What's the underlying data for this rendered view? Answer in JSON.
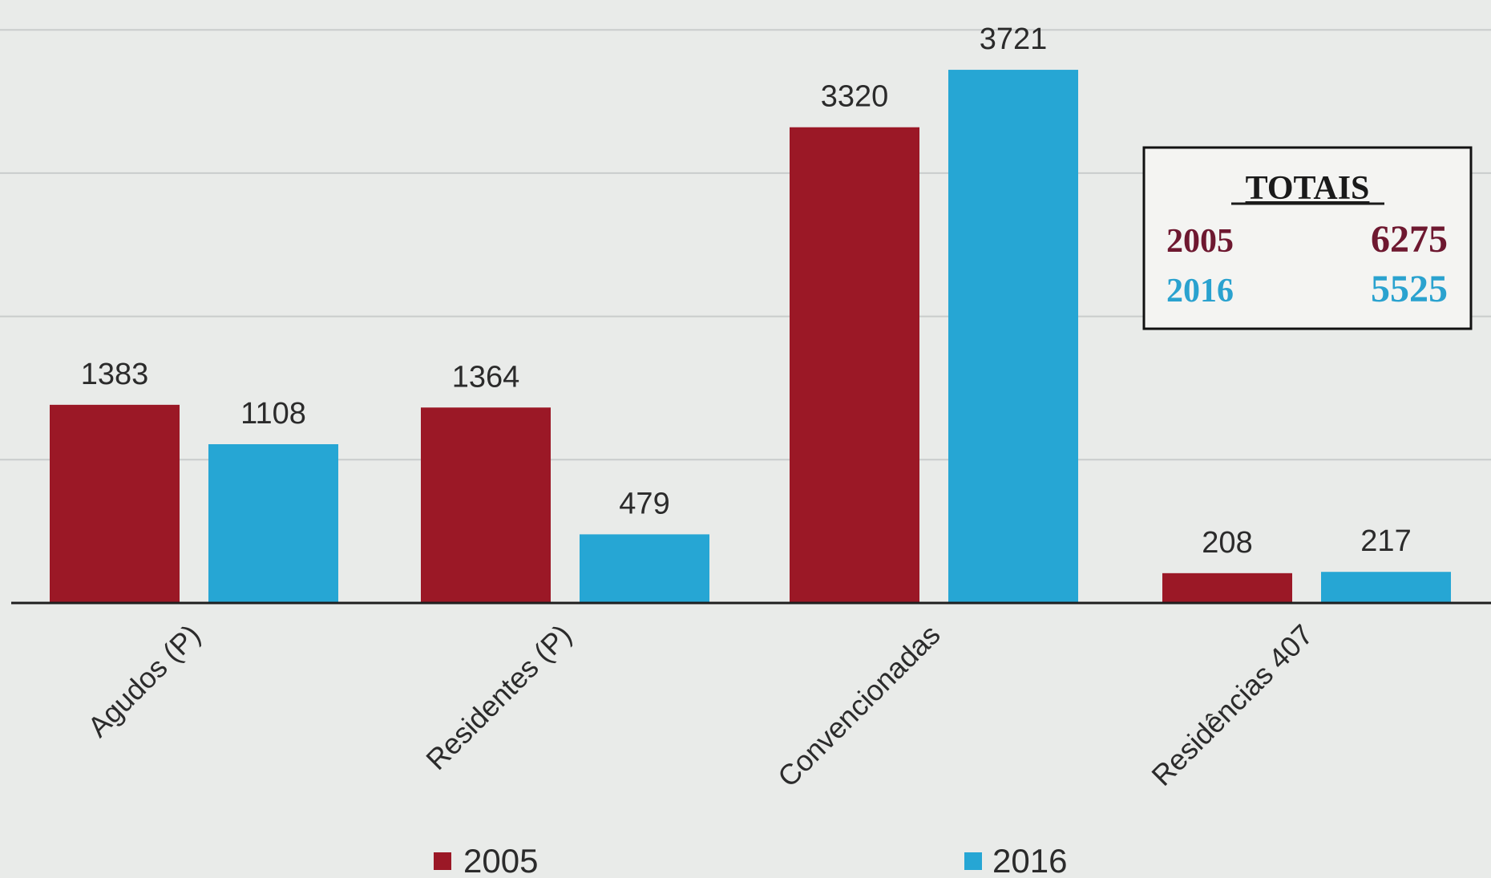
{
  "chart_data": {
    "type": "bar",
    "categories": [
      "Agudos (P)",
      "Residentes (P)",
      "Convencionadas",
      "Residências 407"
    ],
    "series": [
      {
        "name": "2005",
        "values": [
          1383,
          1364,
          3320,
          208
        ],
        "color": "#9b1826"
      },
      {
        "name": "2016",
        "values": [
          1108,
          479,
          3721,
          217
        ],
        "color": "#26a6d4"
      }
    ],
    "ylim": [
      0,
      4000
    ],
    "grid": true,
    "legend": "bottom-center"
  },
  "totals": {
    "title": "TOTAIS",
    "rows": [
      {
        "year": "2005",
        "value": "6275",
        "color": "#6e1830"
      },
      {
        "year": "2016",
        "value": "5525",
        "color": "#2aa2cf"
      }
    ]
  }
}
